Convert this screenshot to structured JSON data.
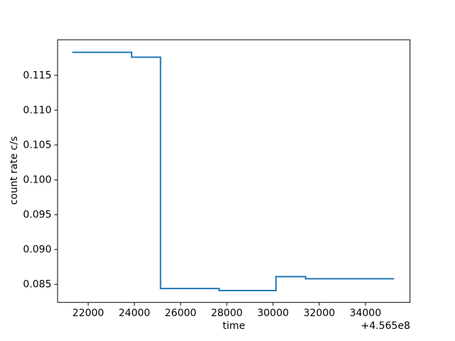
{
  "chart_data": {
    "type": "line",
    "drawstyle": "steps",
    "title": "",
    "xlabel": "time",
    "ylabel": "count rate c/s",
    "x_offset_text": "+4.565e8",
    "line_color": "#1f77b4",
    "axis_color": "#000000",
    "background": "#ffffff",
    "grid": false,
    "legend_position": "none",
    "xlim": [
      20675,
      35930
    ],
    "ylim": [
      0.0824,
      0.1201
    ],
    "xticks": [
      22000,
      24000,
      26000,
      28000,
      30000,
      32000,
      34000
    ],
    "xtick_labels": [
      "22000",
      "24000",
      "26000",
      "28000",
      "30000",
      "32000",
      "34000"
    ],
    "yticks": [
      0.085,
      0.09,
      0.095,
      0.1,
      0.105,
      0.11,
      0.115
    ],
    "ytick_labels": [
      "0.085",
      "0.090",
      "0.095",
      "0.100",
      "0.105",
      "0.110",
      "0.115"
    ],
    "segments": [
      {
        "x_start": 21310,
        "x_end": 23880,
        "y": 0.1183
      },
      {
        "x_start": 23880,
        "x_end": 25130,
        "y": 0.1176
      },
      {
        "x_start": 25130,
        "x_end": 27670,
        "y": 0.0844
      },
      {
        "x_start": 27670,
        "x_end": 30130,
        "y": 0.0841
      },
      {
        "x_start": 30130,
        "x_end": 31410,
        "y": 0.0861
      },
      {
        "x_start": 31410,
        "x_end": 35240,
        "y": 0.0858
      }
    ]
  }
}
